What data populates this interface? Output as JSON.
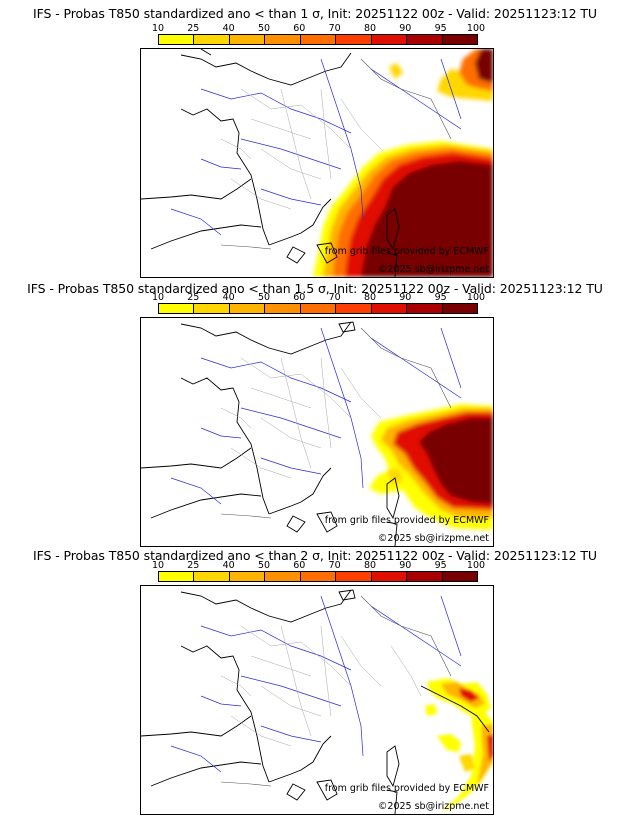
{
  "colorbar": {
    "ticks": [
      "10",
      "25",
      "40",
      "50",
      "60",
      "70",
      "80",
      "90",
      "95",
      "100"
    ],
    "colors": [
      "#ffff00",
      "#ffd700",
      "#ffb400",
      "#ff9100",
      "#ff6e00",
      "#ff3f00",
      "#e01000",
      "#a80000",
      "#780000"
    ]
  },
  "panels": [
    {
      "title": "IFS - Probas T850  standardized ano < than 1 σ, Init: 20251122 00z - Valid: 20251123:12 TU",
      "credit_source": "from grib files provided by ECMWF",
      "credit_copyright": "©2025 sb@irizpme.net"
    },
    {
      "title": "IFS - Probas T850  standardized ano < than 1.5 σ, Init: 20251122 00z - Valid: 20251123:12 TU",
      "credit_source": "from grib files provided by ECMWF",
      "credit_copyright": "©2025 sb@irizpme.net"
    },
    {
      "title": "IFS - Probas T850  standardized ano < than 2 σ, Init: 20251122 00z - Valid: 20251123:12 TU",
      "credit_source": "from grib files provided by ECMWF",
      "credit_copyright": "©2025 sb@irizpme.net"
    }
  ]
}
